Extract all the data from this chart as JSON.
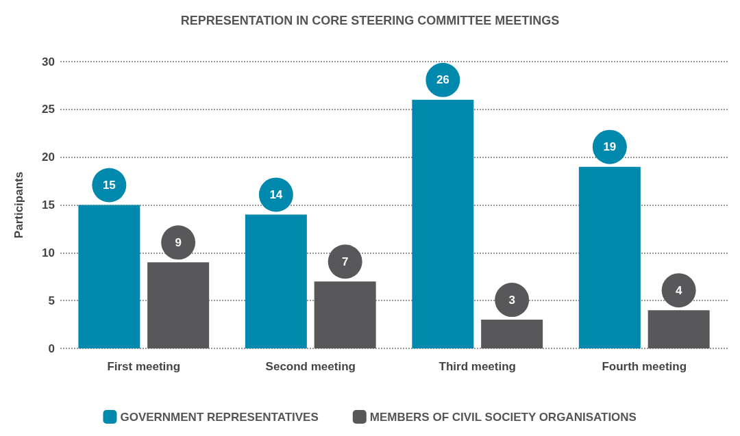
{
  "chart_data": {
    "type": "bar",
    "title": "REPRESENTATION IN CORE STEERING COMMITTEE MEETINGS",
    "ylabel": "Participants",
    "categories": [
      "First meeting",
      "Second meeting",
      "Third meeting",
      "Fourth meeting"
    ],
    "series": [
      {
        "name": "GOVERNMENT REPRESENTATIVES",
        "color": "#0088ad",
        "values": [
          15,
          14,
          26,
          19
        ]
      },
      {
        "name": "MEMBERS OF CIVIL SOCIETY ORGANISATIONS",
        "color": "#58585a",
        "values": [
          9,
          7,
          3,
          4
        ]
      }
    ],
    "ylim": [
      0,
      30
    ],
    "yticks": [
      0,
      5,
      10,
      15,
      20,
      25,
      30
    ],
    "grid": "y",
    "legend": "bottom",
    "data_labels": true
  }
}
